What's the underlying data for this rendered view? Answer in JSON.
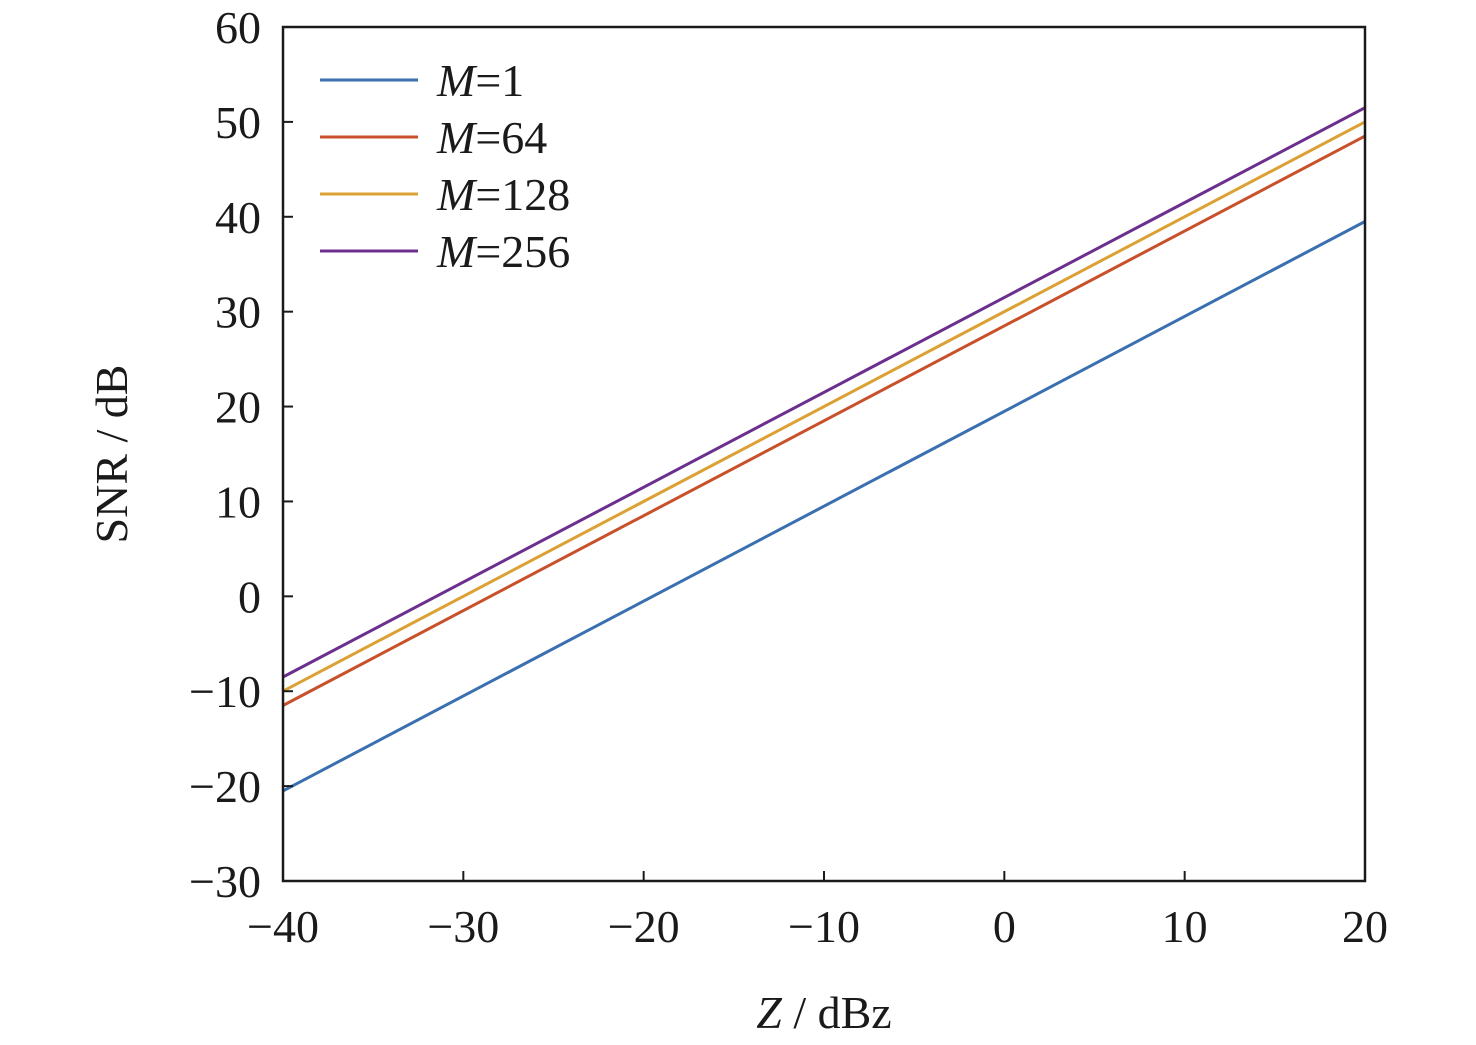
{
  "chart_data": {
    "type": "line",
    "xlabel": {
      "var": "Z",
      "unit": " / dBz"
    },
    "ylabel": "SNR / dB",
    "xlim": [
      -40,
      20
    ],
    "ylim": [
      -30,
      60
    ],
    "xticks": [
      -40,
      -30,
      -20,
      -10,
      0,
      10,
      20
    ],
    "yticks": [
      -30,
      -20,
      -10,
      0,
      10,
      20,
      30,
      40,
      50,
      60
    ],
    "xtick_labels": [
      "−40",
      "−30",
      "−20",
      "−10",
      "0",
      "10",
      "20"
    ],
    "ytick_labels": [
      "−30",
      "−20",
      "−10",
      "0",
      "10",
      "20",
      "30",
      "40",
      "50",
      "60"
    ],
    "grid": false,
    "legend_position": "top-left",
    "series": [
      {
        "name": "M=1",
        "legend_var": "M",
        "legend_value": "=1",
        "color": "#3a6fb0",
        "x": [
          -40,
          20
        ],
        "y": [
          -20.5,
          39.5
        ]
      },
      {
        "name": "M=64",
        "legend_var": "M",
        "legend_value": "=64",
        "color": "#c8502a",
        "x": [
          -40,
          20
        ],
        "y": [
          -11.5,
          48.5
        ]
      },
      {
        "name": "M=128",
        "legend_var": "M",
        "legend_value": "=128",
        "color": "#dba134",
        "x": [
          -40,
          20
        ],
        "y": [
          -10.0,
          50.0
        ]
      },
      {
        "name": "M=256",
        "legend_var": "M",
        "legend_value": "=256",
        "color": "#6c2f8d",
        "x": [
          -40,
          20
        ],
        "y": [
          -8.5,
          51.5
        ]
      }
    ]
  }
}
